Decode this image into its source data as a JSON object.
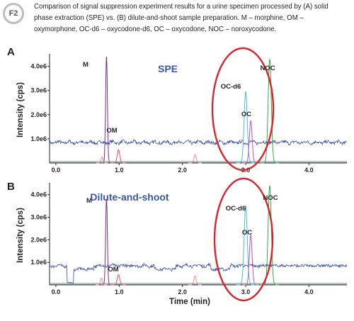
{
  "figure": {
    "badge": "F2",
    "caption": "Comparison of signal suppression experiment results for a urine specimen processed by (A) solid phase extraction (SPE) vs. (B) dilute-and-shoot sample preparation. M – morphine, OM – oxymorphone, OC-d6 – oxycodone-d6, OC – oxycodone, NOC – noroxycodone."
  },
  "colors": {
    "baseline": "#3a4fa3",
    "M": "#7b2d8e",
    "OM": "#e3476b",
    "OC-d6": "#4bb8e6",
    "OC": "#c44fae",
    "NOC": "#3aa845",
    "other": "#f28a9a",
    "highlight_ellipse": "#d7262e",
    "method_label": "#3b56a8"
  },
  "chart_data": [
    {
      "type": "line",
      "panel": "A",
      "method_label": "SPE",
      "xlabel": "",
      "ylabel": "Intensity (cps)",
      "xlim": [
        -0.1,
        4.6
      ],
      "ylim": [
        0,
        4400000.0
      ],
      "x_ticks": [
        "0.0",
        "1.0",
        "2.0",
        "3.0",
        "4.0"
      ],
      "y_ticks": [
        "1.0e6",
        "2.0e6",
        "3.0e6",
        "4.0e6"
      ],
      "peak_labels": [
        "M",
        "OM",
        "OC-d6",
        "OC",
        "NOC"
      ],
      "peaks": [
        {
          "name": "M",
          "x": 0.8,
          "y": 4400000.0,
          "width": 0.014
        },
        {
          "name": "OM",
          "x": 0.99,
          "y": 550000.0,
          "width": 0.02
        },
        {
          "name": "OC-d6",
          "x": 3.0,
          "y": 2950000.0,
          "width": 0.025
        },
        {
          "name": "OC",
          "x": 3.08,
          "y": 1750000.0,
          "width": 0.022
        },
        {
          "name": "NOC",
          "x": 3.38,
          "y": 4300000.0,
          "width": 0.025
        },
        {
          "name": "other",
          "x": 2.2,
          "y": 350000.0,
          "width": 0.018
        },
        {
          "name": "other",
          "x": 0.73,
          "y": 250000.0,
          "width": 0.015
        }
      ],
      "baseline": {
        "level": 850000.0,
        "start": -0.1
      }
    },
    {
      "type": "line",
      "panel": "B",
      "method_label": "Dilute-and-shoot",
      "xlabel": "Time (min)",
      "ylabel": "Intensity (cps)",
      "xlim": [
        -0.1,
        4.6
      ],
      "ylim": [
        0,
        4400000.0
      ],
      "x_ticks": [
        "0.0",
        "1.0",
        "2.0",
        "3.0",
        "4.0"
      ],
      "y_ticks": [
        "1.0e6",
        "2.0e6",
        "3.0e6",
        "4.0e6"
      ],
      "peak_labels": [
        "M",
        "OM",
        "OC-d6",
        "OC",
        "NOC"
      ],
      "peaks": [
        {
          "name": "M",
          "x": 0.8,
          "y": 3800000.0,
          "width": 0.014
        },
        {
          "name": "OM",
          "x": 0.99,
          "y": 450000.0,
          "width": 0.02
        },
        {
          "name": "OC-d6",
          "x": 3.0,
          "y": 3500000.0,
          "width": 0.025
        },
        {
          "name": "OC",
          "x": 3.08,
          "y": 2200000.0,
          "width": 0.022
        },
        {
          "name": "NOC",
          "x": 3.38,
          "y": 4400000.0,
          "width": 0.025
        },
        {
          "name": "other",
          "x": 2.2,
          "y": 400000.0,
          "width": 0.018
        },
        {
          "name": "other",
          "x": 0.72,
          "y": 300000.0,
          "width": 0.015
        }
      ],
      "baseline": {
        "level": 850000.0,
        "start": -0.1,
        "dips": [
          [
            0.25,
            0.6
          ],
          [
            1.55,
            1.9
          ],
          [
            2.45,
            2.75
          ]
        ]
      }
    }
  ]
}
